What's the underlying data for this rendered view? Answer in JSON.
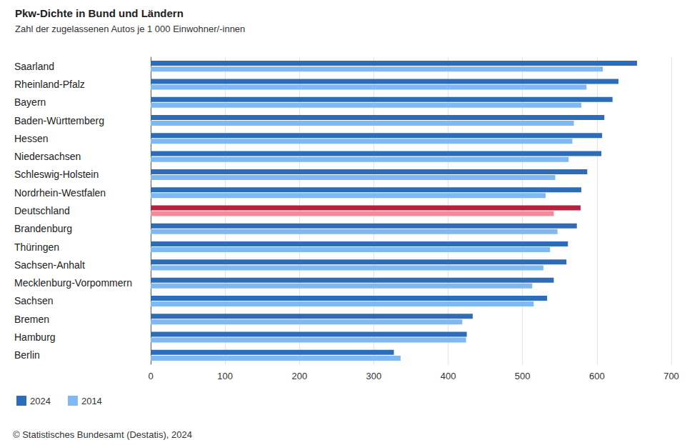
{
  "chart_data": {
    "type": "bar",
    "orientation": "horizontal",
    "title": "Pkw-Dichte in Bund und Ländern",
    "subtitle": "Zahl der zugelassenen Autos je 1 000 Einwohner/-innen",
    "source": "© Statistisches Bundesamt (Destatis), 2024",
    "categories": [
      "Saarland",
      "Rheinland-Pfalz",
      "Bayern",
      "Baden-Württemberg",
      "Hessen",
      "Niedersachsen",
      "Schleswig-Holstein",
      "Nordrhein-Westfalen",
      "Deutschland",
      "Brandenburg",
      "Thüringen",
      "Sachsen-Anhalt",
      "Mecklenburg-Vorpommern",
      "Sachsen",
      "Bremen",
      "Hamburg",
      "Berlin"
    ],
    "series": [
      {
        "name": "2024",
        "color": "#2d6cb9",
        "colors": [
          "#2d6cb9",
          "#2d6cb9",
          "#2d6cb9",
          "#2d6cb9",
          "#2d6cb9",
          "#2d6cb9",
          "#2d6cb9",
          "#2d6cb9",
          "#b5213f",
          "#2d6cb9",
          "#2d6cb9",
          "#2d6cb9",
          "#2d6cb9",
          "#2d6cb9",
          "#2d6cb9",
          "#2d6cb9",
          "#2d6cb9"
        ],
        "values": [
          654,
          629,
          621,
          610,
          607,
          606,
          587,
          579,
          578,
          573,
          561,
          559,
          542,
          533,
          433,
          425,
          327
        ]
      },
      {
        "name": "2014",
        "color": "#80b8f3",
        "colors": [
          "#80b8f3",
          "#80b8f3",
          "#80b8f3",
          "#80b8f3",
          "#80b8f3",
          "#80b8f3",
          "#80b8f3",
          "#80b8f3",
          "#f3899a",
          "#80b8f3",
          "#80b8f3",
          "#80b8f3",
          "#80b8f3",
          "#80b8f3",
          "#80b8f3",
          "#80b8f3",
          "#80b8f3"
        ],
        "values": [
          608,
          586,
          579,
          569,
          567,
          562,
          544,
          531,
          542,
          547,
          537,
          528,
          513,
          515,
          419,
          424,
          336
        ]
      }
    ],
    "xlim": [
      0,
      700
    ],
    "xticks": [
      0,
      100,
      200,
      300,
      400,
      500,
      600,
      700
    ],
    "grid": true,
    "legend": "bottom-left"
  }
}
